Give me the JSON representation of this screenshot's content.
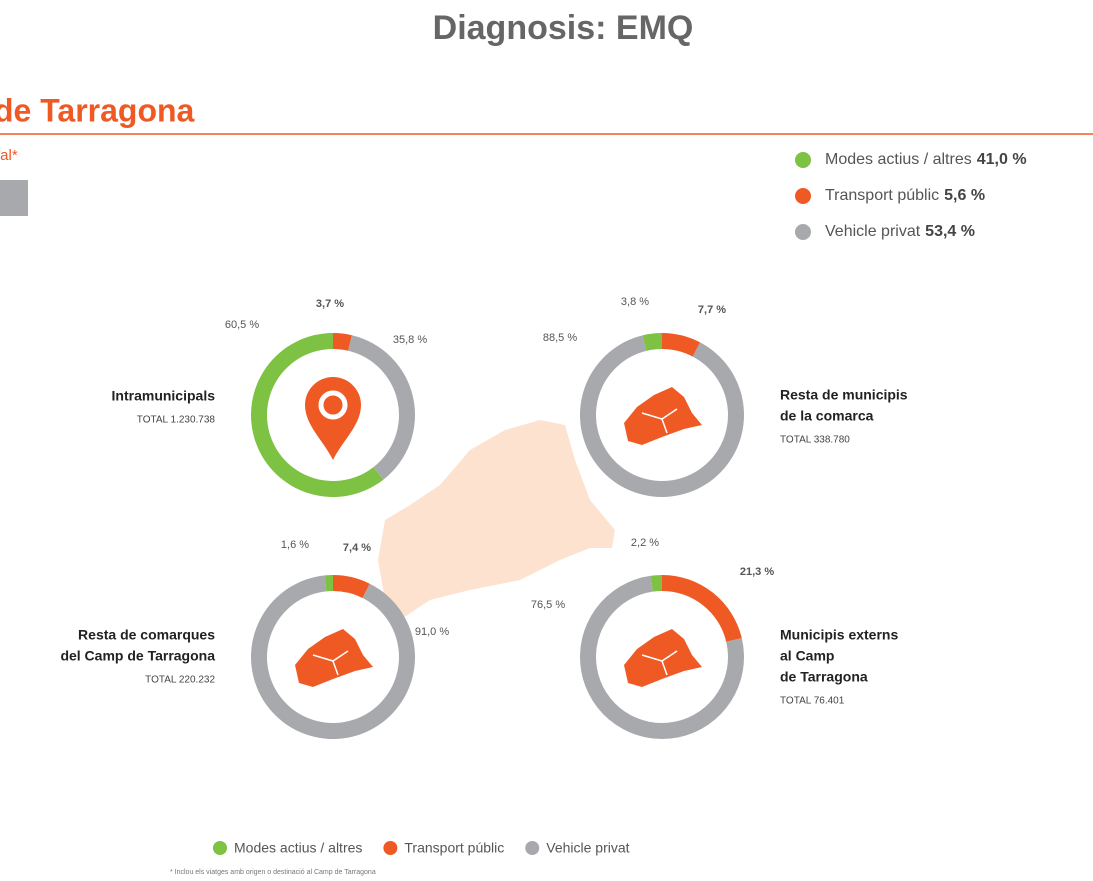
{
  "page": {
    "title": "Diagnosis: EMQ",
    "section_title": "de Tarragona",
    "subtitle": "tal*",
    "footnote": "* Inclou els viatges amb origen o destinació al Camp de Tarragona"
  },
  "summary": [
    {
      "name": "Modes actius / altres",
      "color": "#7dc242",
      "value": 41.0,
      "value_label": "41,0 %"
    },
    {
      "name": "Transport públic",
      "color": "#ef5a24",
      "value": 5.6,
      "value_label": "5,6 %"
    },
    {
      "name": "Vehicle privat",
      "color": "#a7a9ac",
      "value": 53.4,
      "value_label": "53,4 %"
    }
  ],
  "legend": [
    {
      "name": "Modes actius / altres",
      "color": "#7dc242"
    },
    {
      "name": "Transport públic",
      "color": "#ef5a24"
    },
    {
      "name": "Vehicle privat",
      "color": "#a7a9ac"
    }
  ],
  "chart_data": [
    {
      "type": "pie",
      "title": [
        "Intramunicipals"
      ],
      "total": "TOTAL 1.230.738",
      "categories": [
        "Transport públic",
        "Vehicle privat",
        "Modes actius / altres"
      ],
      "colors": [
        "#ef5a24",
        "#a7a9ac",
        "#7dc242"
      ],
      "values": [
        3.7,
        35.8,
        60.5
      ],
      "value_labels": [
        "3,7 %",
        "35,8 %",
        "60,5 %"
      ]
    },
    {
      "type": "pie",
      "title": [
        "Resta de municipis",
        "de la comarca"
      ],
      "total": "TOTAL 338.780",
      "categories": [
        "Transport públic",
        "Vehicle privat",
        "Modes actius / altres"
      ],
      "colors": [
        "#ef5a24",
        "#a7a9ac",
        "#7dc242"
      ],
      "values": [
        7.7,
        88.5,
        3.8
      ],
      "value_labels": [
        "7,7 %",
        "88,5 %",
        "3,8 %"
      ]
    },
    {
      "type": "pie",
      "title": [
        "Resta de comarques",
        "del Camp de Tarragona"
      ],
      "total": "TOTAL 220.232",
      "categories": [
        "Transport públic",
        "Vehicle privat",
        "Modes actius / altres"
      ],
      "colors": [
        "#ef5a24",
        "#a7a9ac",
        "#7dc242"
      ],
      "values": [
        7.4,
        91.0,
        1.6
      ],
      "value_labels": [
        "7,4 %",
        "91,0 %",
        "1,6 %"
      ]
    },
    {
      "type": "pie",
      "title": [
        "Municipis externs",
        "al Camp",
        "de Tarragona"
      ],
      "total": "TOTAL 76.401",
      "categories": [
        "Transport públic",
        "Vehicle privat",
        "Modes actius / altres"
      ],
      "colors": [
        "#ef5a24",
        "#a7a9ac",
        "#7dc242"
      ],
      "values": [
        21.3,
        76.5,
        2.2
      ],
      "value_labels": [
        "21,3 %",
        "76,5 %",
        "2,2 %"
      ]
    }
  ]
}
